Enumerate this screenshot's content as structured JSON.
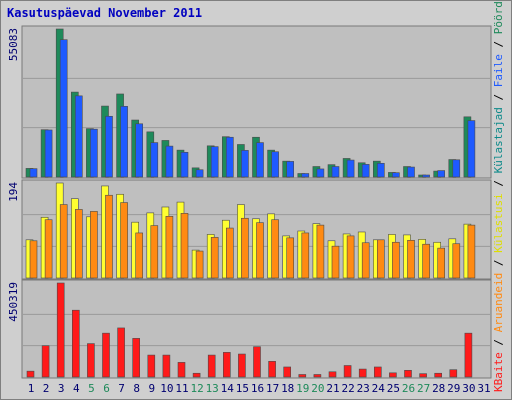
{
  "title": "Kasutuspäevad November 2011",
  "chart_data": {
    "type": "bar",
    "x": [
      "1",
      "2",
      "3",
      "4",
      "5",
      "6",
      "7",
      "8",
      "9",
      "10",
      "11",
      "12",
      "13",
      "14",
      "15",
      "16",
      "17",
      "18",
      "19",
      "20",
      "21",
      "22",
      "23",
      "24",
      "25",
      "26",
      "27",
      "28",
      "29",
      "30",
      "31"
    ],
    "weekend_days": [
      "5",
      "6",
      "12",
      "13",
      "19",
      "20",
      "26",
      "27"
    ],
    "panels": [
      {
        "id": "top",
        "y_label": "55083",
        "ymax": 55083,
        "series": [
          {
            "name": "Külastajad",
            "color": "#0e8a8a",
            "values": [
              0,
              0,
              0,
              0,
              0,
              0,
              0,
              0,
              0,
              0,
              0,
              0,
              0,
              0,
              0,
              0,
              0,
              0,
              0,
              0,
              0,
              0,
              0,
              0,
              0,
              0,
              0,
              0,
              0,
              0,
              0
            ]
          },
          {
            "name": "Pöördumisi",
            "color": "#1e8a5a",
            "values": [
              3200,
              17600,
              55083,
              31600,
              18000,
              26400,
              30900,
              21200,
              16800,
              13600,
              10000,
              3400,
              11600,
              15000,
              12100,
              14800,
              10000,
              5900,
              1300,
              3900,
              4600,
              6900,
              5300,
              5900,
              1700,
              3900,
              700,
              2200,
              6500,
              22400,
              0
            ]
          },
          {
            "name": "Faile",
            "color": "#1e5aff",
            "values": [
              3100,
              17500,
              51100,
              30200,
              17800,
              22600,
              26300,
              19800,
              12800,
              11500,
              9200,
              2700,
              11300,
              14800,
              9900,
              12800,
              9400,
              5800,
              1300,
              3000,
              3900,
              6300,
              4700,
              5100,
              1600,
              3700,
              600,
              2400,
              6400,
              21000,
              0
            ]
          }
        ]
      },
      {
        "id": "middle",
        "y_label": "194",
        "ymax": 194,
        "series": [
          {
            "name": "Külastusi",
            "color": "#ffff30",
            "values": [
              78,
              124,
              194,
              162,
              125,
              188,
              171,
              114,
              133,
              145,
              155,
              57,
              89,
              118,
              150,
              121,
              131,
              86,
              96,
              111,
              76,
              90,
              94,
              78,
              89,
              88,
              79,
              73,
              80,
              110,
              0
            ]
          },
          {
            "name": "Aruandeid",
            "color": "#ff8a12",
            "values": [
              76,
              119,
              150,
              140,
              136,
              169,
              154,
              92,
              107,
              126,
              132,
              55,
              83,
              102,
              122,
              113,
              119,
              82,
              92,
              108,
              65,
              86,
              72,
              78,
              73,
              77,
              69,
              61,
              70,
              108,
              0
            ]
          }
        ]
      },
      {
        "id": "bottom",
        "y_label": "450319",
        "ymax": 450319,
        "series": [
          {
            "name": "KBaite",
            "color": "#ff1a1a",
            "values": [
              28000,
              150000,
              450319,
              320000,
              160000,
              210000,
              235000,
              185000,
              105000,
              105000,
              70000,
              18000,
              105000,
              118000,
              110000,
              145000,
              75000,
              48000,
              12000,
              12000,
              25000,
              55000,
              38000,
              48000,
              20000,
              32000,
              16000,
              18000,
              35000,
              210000,
              0
            ]
          }
        ]
      }
    ],
    "right_axis_labels": [
      {
        "text": "Pöördumisi",
        "color": "#1e8a5a"
      },
      {
        "text": "Faile",
        "color": "#1e5aff"
      },
      {
        "text": "Külastajad",
        "color": "#0e8a8a"
      },
      {
        "text": "Külastusi",
        "color": "#dede00"
      },
      {
        "text": "Aruandeid",
        "color": "#ff8a12"
      },
      {
        "text": "KBaite",
        "color": "#ff1a1a"
      }
    ],
    "right_separator": " / ",
    "tick_color": "#000070",
    "weekend_tick_color": "#1e8a5a",
    "grid": true
  }
}
